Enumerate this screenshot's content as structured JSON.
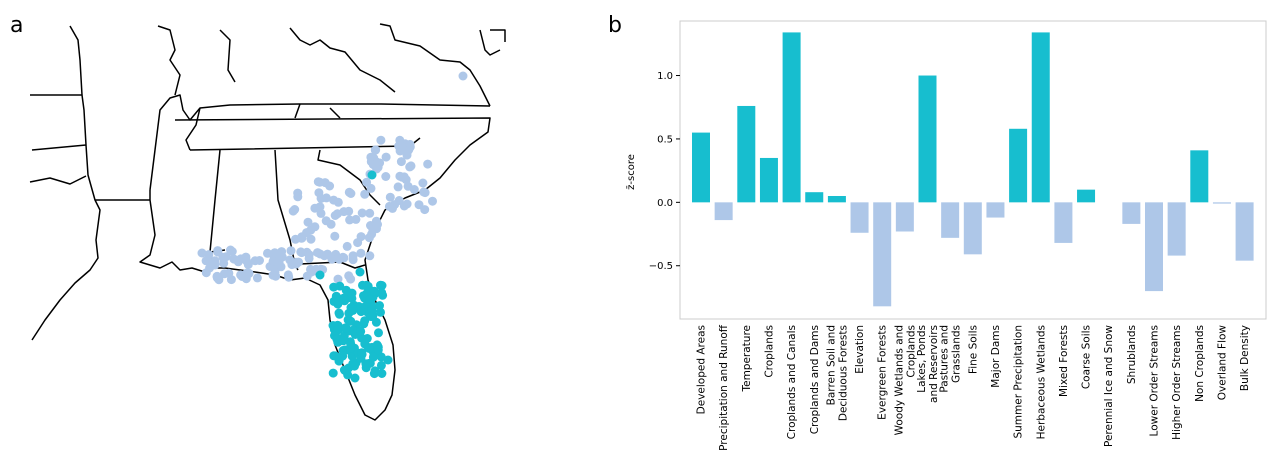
{
  "panels": {
    "a": "a",
    "b": "b"
  },
  "colors": {
    "positive": "#17becf",
    "negative": "#aec7e8",
    "boundary": "#000000"
  },
  "map_data": {
    "type": "point-map",
    "region": "Southeastern United States",
    "groups": [
      {
        "color": "#aec7e8",
        "count": 230
      },
      {
        "color": "#17becf",
        "count": 150
      }
    ]
  },
  "chart_data": {
    "type": "bar",
    "ylabel": "z̄-score",
    "ylim": [
      -0.92,
      1.43
    ],
    "yticks": [
      -0.5,
      0.0,
      0.5,
      1.0
    ],
    "ytick_labels": [
      "−0.5",
      "0.0",
      "0.5",
      "1.0"
    ],
    "grid": false,
    "categories": [
      {
        "lines": [
          "Developed Areas"
        ],
        "value": 0.55
      },
      {
        "lines": [
          "Precipitation and Runoff"
        ],
        "value": -0.14
      },
      {
        "lines": [
          "Temperature"
        ],
        "value": 0.76
      },
      {
        "lines": [
          "Croplands"
        ],
        "value": 0.35
      },
      {
        "lines": [
          "Croplands and Canals"
        ],
        "value": 1.34
      },
      {
        "lines": [
          "Croplands and Dams"
        ],
        "value": 0.08
      },
      {
        "lines": [
          "Barren Soil and",
          "Deciduous Forests"
        ],
        "value": 0.05
      },
      {
        "lines": [
          "Elevation"
        ],
        "value": -0.24
      },
      {
        "lines": [
          "Evergreen Forests"
        ],
        "value": -0.82
      },
      {
        "lines": [
          "Woody Wetlands and",
          "Croplands"
        ],
        "value": -0.23
      },
      {
        "lines": [
          "Lakes, Ponds",
          "and Reservoirs"
        ],
        "value": 1.0
      },
      {
        "lines": [
          "Pastures and",
          "Grasslands"
        ],
        "value": -0.28
      },
      {
        "lines": [
          "Fine Soils"
        ],
        "value": -0.41
      },
      {
        "lines": [
          "Major Dams"
        ],
        "value": -0.12
      },
      {
        "lines": [
          "Summer Precipitation"
        ],
        "value": 0.58
      },
      {
        "lines": [
          "Herbaceous Wetlands"
        ],
        "value": 1.34
      },
      {
        "lines": [
          "Mixed Forests"
        ],
        "value": -0.32
      },
      {
        "lines": [
          "Coarse Soils"
        ],
        "value": 0.1
      },
      {
        "lines": [
          "Perennial Ice and Snow"
        ],
        "value": 0.0
      },
      {
        "lines": [
          "Shrublands"
        ],
        "value": -0.17
      },
      {
        "lines": [
          "Lower Order Streams"
        ],
        "value": -0.7
      },
      {
        "lines": [
          "Higher Order Streams"
        ],
        "value": -0.42
      },
      {
        "lines": [
          "Non Croplands"
        ],
        "value": 0.41
      },
      {
        "lines": [
          "Overland Flow"
        ],
        "value": -0.01
      },
      {
        "lines": [
          "Bulk Density"
        ],
        "value": -0.46
      }
    ]
  }
}
